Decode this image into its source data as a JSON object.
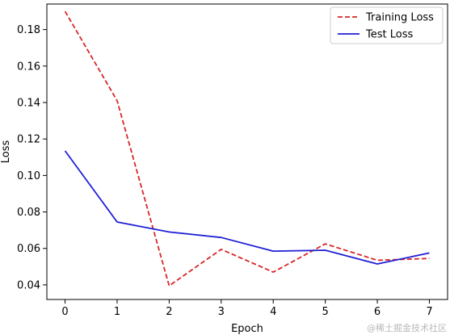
{
  "chart_data": {
    "type": "line",
    "xlabel": "Epoch",
    "ylabel": "Loss",
    "x": [
      0,
      1,
      2,
      3,
      4,
      5,
      6,
      7
    ],
    "xlim": [
      -0.35,
      7.35
    ],
    "ylim": [
      0.032,
      0.194
    ],
    "xticks": [
      0,
      1,
      2,
      3,
      4,
      5,
      6,
      7
    ],
    "yticks": [
      0.04,
      0.06,
      0.08,
      0.1,
      0.12,
      0.14,
      0.16,
      0.18
    ],
    "ytick_labels": [
      "0.04",
      "0.06",
      "0.08",
      "0.10",
      "0.12",
      "0.14",
      "0.16",
      "0.18"
    ],
    "grid": false,
    "legend_position": "top-right",
    "series": [
      {
        "name": "Training Loss",
        "values": [
          0.19,
          0.141,
          0.0395,
          0.0595,
          0.047,
          0.0625,
          0.0535,
          0.0545
        ],
        "color": "#d62728",
        "style": "dashed"
      },
      {
        "name": "Test Loss",
        "values": [
          0.1135,
          0.0745,
          0.069,
          0.066,
          0.0585,
          0.059,
          0.0515,
          0.0575
        ],
        "color": "#1f1fd6",
        "style": "solid"
      }
    ]
  },
  "watermark": "@稀土掘金技术社区"
}
